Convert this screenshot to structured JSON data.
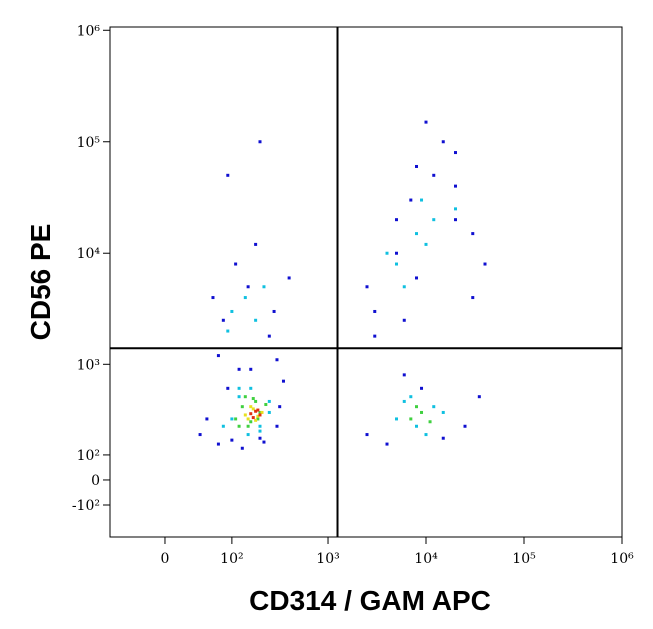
{
  "chart_data": {
    "type": "scatter",
    "xlabel": "CD314 / GAM APC",
    "ylabel": "CD56 PE",
    "xscale": "biexponential",
    "yscale": "biexponential",
    "xlim": [
      -73,
      1000000
    ],
    "ylim": [
      -272,
      1070000
    ],
    "xticks": [
      0,
      {
        "value": 100,
        "label": "10²"
      },
      {
        "value": 1000,
        "label": "10³"
      },
      {
        "value": 10000,
        "label": "10⁴"
      },
      {
        "value": 100000,
        "label": "10⁵"
      },
      {
        "value": 1000000,
        "label": "10⁶"
      }
    ],
    "yticks": [
      {
        "value": -100,
        "label": "-10²"
      },
      0,
      {
        "value": 100,
        "label": "10²"
      },
      {
        "value": 1000,
        "label": "10³"
      },
      {
        "value": 10000,
        "label": "10⁴"
      },
      {
        "value": 100000,
        "label": "10⁵"
      },
      {
        "value": 1000000,
        "label": "10⁶"
      }
    ],
    "quadrant_lines": {
      "x": 1250,
      "y": 1400,
      "color": "#000000"
    },
    "series": [
      {
        "color": "#1010d0",
        "x": [
          40,
          70,
          90,
          120,
          200,
          300,
          350,
          80,
          150,
          250,
          60,
          110,
          180,
          280,
          400,
          100,
          130,
          220,
          50,
          320,
          2500,
          4000,
          6000,
          9000,
          15000,
          25000,
          35000,
          3000,
          8000,
          20000,
          3000,
          5000,
          7000,
          12000,
          20000,
          30000,
          2500,
          15000,
          40000,
          6000,
          20000,
          10000,
          5000,
          30000,
          8000,
          70,
          160,
          300,
          90,
          200
        ],
        "values": [
          200,
          150,
          600,
          900,
          180,
          250,
          700,
          2500,
          5000,
          1800,
          4000,
          8000,
          12000,
          3000,
          6000,
          170,
          130,
          160,
          300,
          400,
          200,
          150,
          800,
          600,
          180,
          250,
          500,
          3000,
          6000,
          20000,
          1800,
          10000,
          30000,
          50000,
          80000,
          15000,
          5000,
          100000,
          8000,
          2500,
          40000,
          150000,
          20000,
          4000,
          60000,
          1200,
          900,
          1100,
          50000,
          100000
        ]
      },
      {
        "color": "#10c0e0",
        "x": [
          80,
          120,
          160,
          200,
          250,
          100,
          140,
          180,
          220,
          90,
          5000,
          8000,
          12000,
          6000,
          10000,
          15000,
          7000,
          100,
          150,
          200,
          250,
          120,
          5000,
          8000,
          10000,
          6000,
          12000,
          4000,
          20000,
          9000
        ],
        "values": [
          250,
          500,
          600,
          220,
          450,
          3000,
          4000,
          2500,
          5000,
          2000,
          300,
          250,
          400,
          450,
          200,
          350,
          500,
          300,
          200,
          250,
          350,
          600,
          8000,
          15000,
          12000,
          5000,
          20000,
          10000,
          25000,
          30000
        ]
      },
      {
        "color": "#40d040",
        "x": [
          110,
          130,
          160,
          200,
          230,
          140,
          180,
          7000,
          9000,
          11000,
          8000,
          120,
          190,
          170,
          150
        ],
        "values": [
          300,
          400,
          280,
          350,
          420,
          500,
          450,
          300,
          350,
          280,
          400,
          250,
          300,
          480,
          250
        ]
      },
      {
        "color": "#e8e020",
        "x": [
          140,
          170,
          190,
          150,
          210,
          160,
          180
        ],
        "values": [
          330,
          380,
          320,
          300,
          350,
          400,
          290
        ]
      },
      {
        "color": "#e03010",
        "x": [
          160,
          180,
          200,
          170,
          190
        ],
        "values": [
          340,
          360,
          330,
          310,
          370
        ]
      }
    ]
  }
}
